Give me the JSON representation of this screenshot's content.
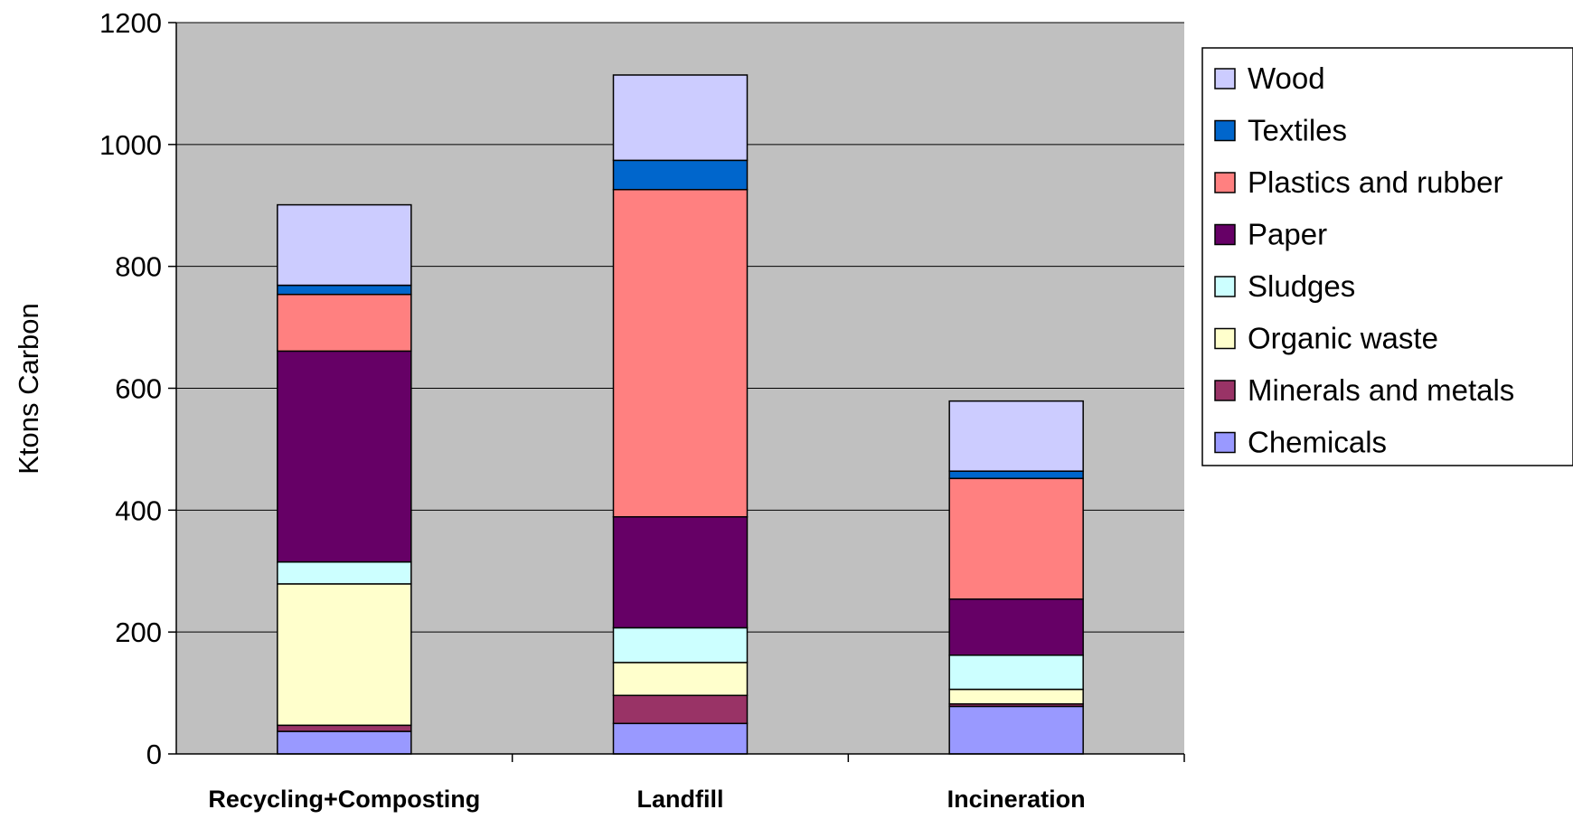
{
  "chart_data": {
    "type": "bar",
    "stacked": true,
    "ylabel": "Ktons Carbon",
    "xlabel": "",
    "ylim": [
      0,
      1200
    ],
    "yticks": [
      0,
      200,
      400,
      600,
      800,
      1000,
      1200
    ],
    "grid": true,
    "legend_position": "right",
    "plot_background": "#C0C0C0",
    "categories": [
      "Recycling+Composting",
      "Landfill",
      "Incineration"
    ],
    "series": [
      {
        "name": "Chemicals",
        "color": "#9999FF",
        "values": [
          37,
          50,
          78
        ]
      },
      {
        "name": "Minerals and metals",
        "color": "#993366",
        "values": [
          10,
          46,
          4
        ]
      },
      {
        "name": "Organic waste",
        "color": "#FFFFCC",
        "values": [
          232,
          54,
          24
        ]
      },
      {
        "name": "Sludges",
        "color": "#CCFFFF",
        "values": [
          36,
          57,
          56
        ]
      },
      {
        "name": "Paper",
        "color": "#660066",
        "values": [
          346,
          182,
          92
        ]
      },
      {
        "name": "Plastics and rubber",
        "color": "#FF8080",
        "values": [
          93,
          537,
          198
        ]
      },
      {
        "name": "Textiles",
        "color": "#0066CC",
        "values": [
          15,
          48,
          12
        ]
      },
      {
        "name": "Wood",
        "color": "#CCCCFF",
        "values": [
          132,
          140,
          115
        ]
      }
    ]
  }
}
